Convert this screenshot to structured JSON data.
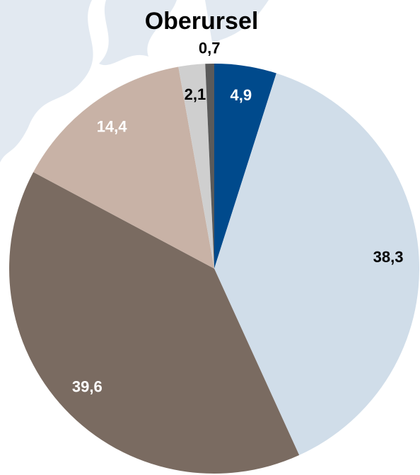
{
  "chart_data": {
    "type": "pie",
    "title": "Oberursel",
    "values": [
      4.9,
      38.3,
      39.6,
      14.4,
      2.1,
      0.7
    ],
    "value_labels": [
      "4,9",
      "38,3",
      "39,6",
      "14,4",
      "2,1",
      "0,7"
    ],
    "colors": [
      "#004a8c",
      "#d0dde9",
      "#7a6b61",
      "#c8b2a6",
      "#cfcfcf",
      "#5a5a5a"
    ],
    "label_colors": [
      "#ffffff",
      "#000000",
      "#ffffff",
      "#ffffff",
      "#000000",
      "#000000"
    ]
  }
}
